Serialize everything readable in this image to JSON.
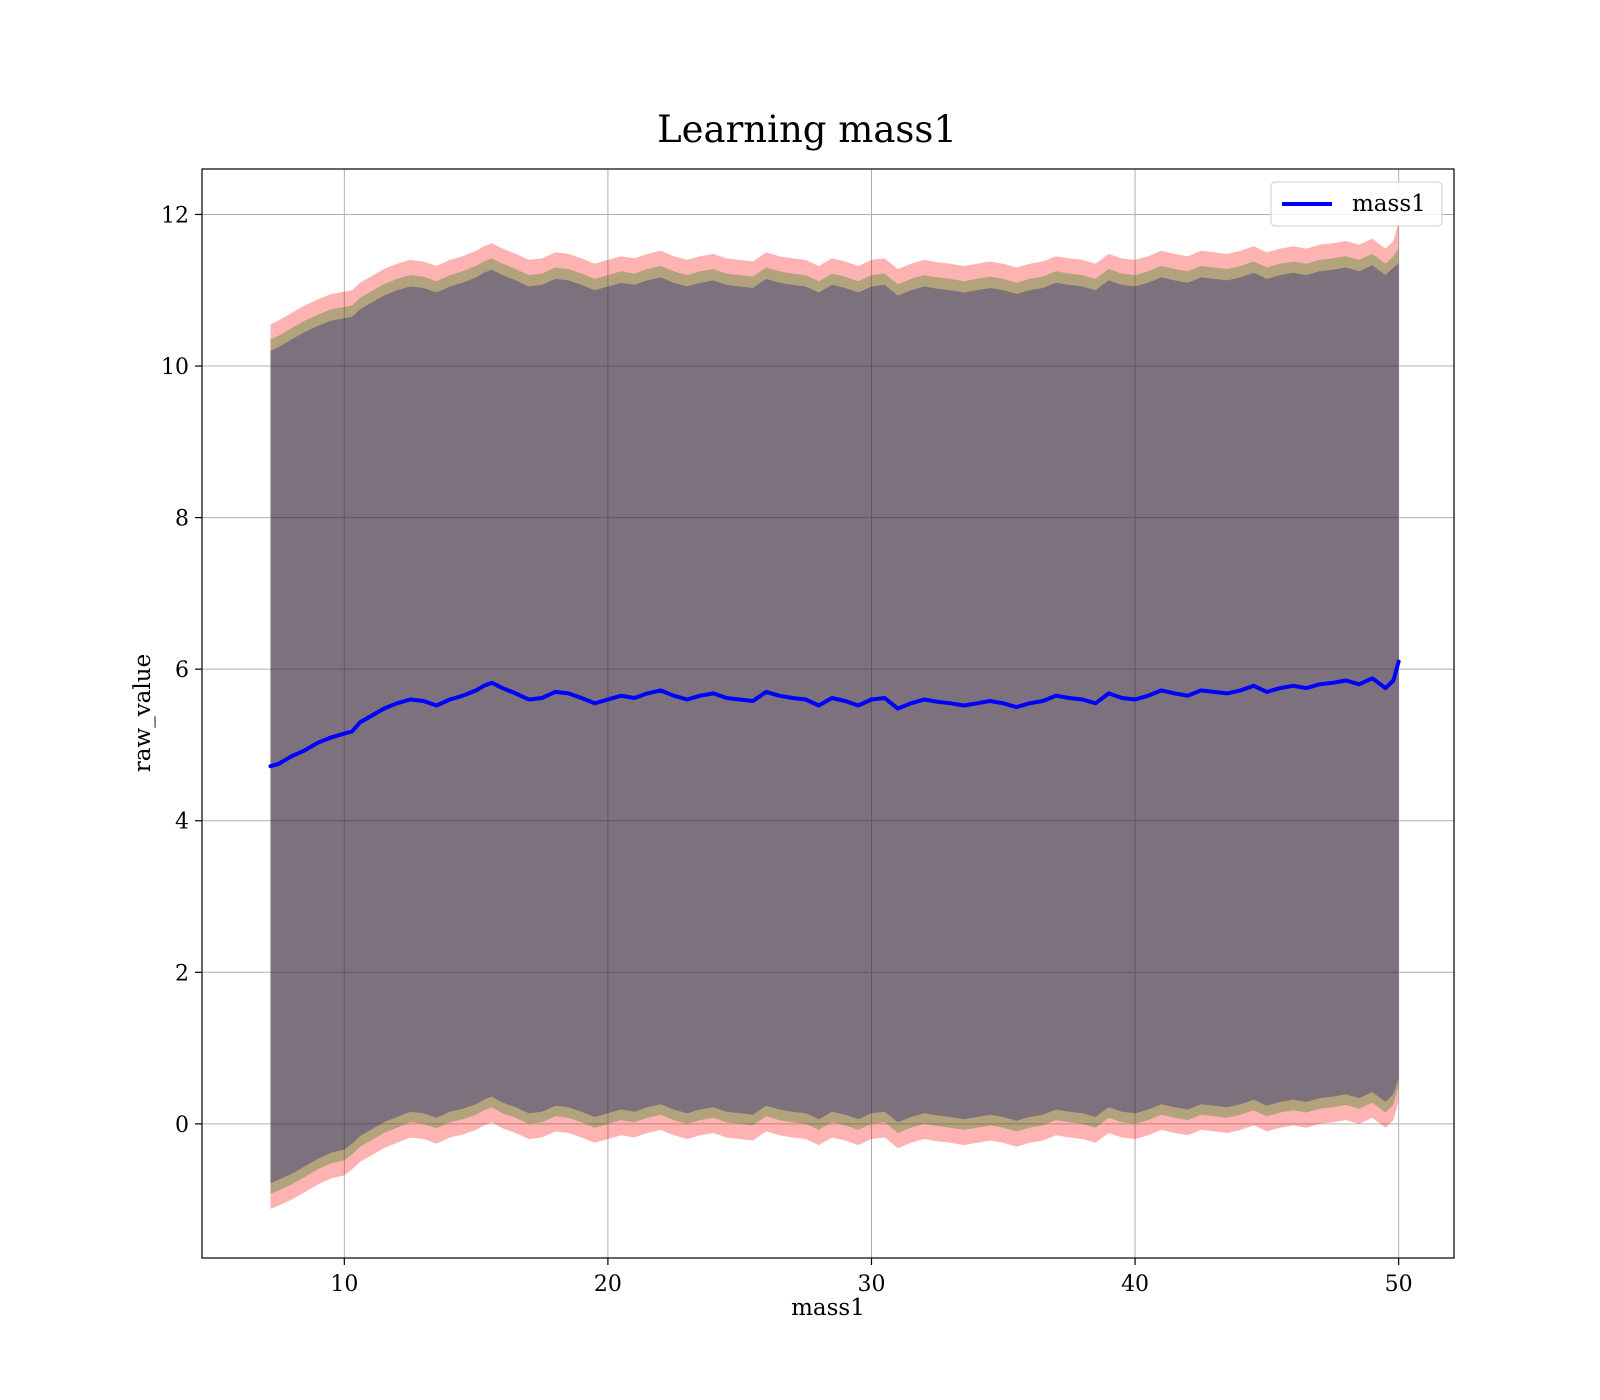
{
  "chart_data": {
    "type": "line",
    "title": "Learning mass1",
    "xlabel": "mass1",
    "ylabel": "raw_value",
    "xlim": [
      4.6,
      52.1
    ],
    "ylim": [
      -1.77,
      12.6
    ],
    "xticks": [
      10,
      20,
      30,
      40,
      50
    ],
    "yticks": [
      0,
      2,
      4,
      6,
      8,
      10,
      12
    ],
    "grid": true,
    "legend": {
      "position": "top-right",
      "entries": [
        "mass1"
      ]
    },
    "series": [
      {
        "name": "mass1",
        "color": "#0000ff",
        "x": [
          7.2,
          7.5,
          8,
          8.5,
          9,
          9.5,
          10,
          10.3,
          10.6,
          11,
          11.5,
          12,
          12.5,
          13,
          13.5,
          14,
          14.5,
          15,
          15.3,
          15.6,
          16,
          16.5,
          17,
          17.5,
          18,
          18.5,
          19,
          19.5,
          20,
          20.5,
          21,
          21.5,
          22,
          22.5,
          23,
          23.5,
          24,
          24.5,
          25,
          25.5,
          26,
          26.5,
          27,
          27.5,
          28,
          28.5,
          29,
          29.5,
          30,
          30.5,
          31,
          31.5,
          32,
          32.5,
          33,
          33.5,
          34,
          34.5,
          35,
          35.5,
          36,
          36.5,
          37,
          37.5,
          38,
          38.5,
          39,
          39.5,
          40,
          40.5,
          41,
          41.5,
          42,
          42.5,
          43,
          43.5,
          44,
          44.5,
          45,
          45.5,
          46,
          46.5,
          47,
          47.5,
          48,
          48.5,
          49,
          49.5,
          49.8,
          50
        ],
        "y": [
          4.72,
          4.75,
          4.85,
          4.93,
          5.03,
          5.1,
          5.15,
          5.18,
          5.3,
          5.38,
          5.48,
          5.55,
          5.6,
          5.58,
          5.52,
          5.6,
          5.65,
          5.72,
          5.78,
          5.82,
          5.75,
          5.68,
          5.6,
          5.62,
          5.7,
          5.68,
          5.62,
          5.55,
          5.6,
          5.65,
          5.62,
          5.68,
          5.72,
          5.65,
          5.6,
          5.65,
          5.68,
          5.62,
          5.6,
          5.58,
          5.7,
          5.65,
          5.62,
          5.6,
          5.52,
          5.62,
          5.58,
          5.52,
          5.6,
          5.62,
          5.48,
          5.55,
          5.6,
          5.57,
          5.55,
          5.52,
          5.55,
          5.58,
          5.55,
          5.5,
          5.55,
          5.58,
          5.65,
          5.62,
          5.6,
          5.55,
          5.68,
          5.62,
          5.6,
          5.65,
          5.72,
          5.68,
          5.65,
          5.72,
          5.7,
          5.68,
          5.72,
          5.78,
          5.7,
          5.75,
          5.78,
          5.75,
          5.8,
          5.82,
          5.85,
          5.8,
          5.88,
          5.75,
          5.85,
          6.1
        ]
      }
    ],
    "bands": [
      {
        "color": "#ff0000",
        "opacity": 0.3,
        "lower": [
          -1.12,
          -1.08,
          -1.0,
          -0.9,
          -0.8,
          -0.72,
          -0.68,
          -0.6,
          -0.5,
          -0.42,
          -0.32,
          -0.25,
          -0.18,
          -0.2,
          -0.26,
          -0.18,
          -0.14,
          -0.08,
          -0.02,
          0.02,
          -0.06,
          -0.12,
          -0.2,
          -0.18,
          -0.1,
          -0.12,
          -0.18,
          -0.25,
          -0.2,
          -0.15,
          -0.18,
          -0.12,
          -0.08,
          -0.15,
          -0.2,
          -0.15,
          -0.12,
          -0.18,
          -0.2,
          -0.22,
          -0.1,
          -0.15,
          -0.18,
          -0.2,
          -0.28,
          -0.18,
          -0.22,
          -0.28,
          -0.2,
          -0.18,
          -0.32,
          -0.25,
          -0.2,
          -0.23,
          -0.25,
          -0.28,
          -0.25,
          -0.22,
          -0.25,
          -0.3,
          -0.25,
          -0.22,
          -0.15,
          -0.18,
          -0.2,
          -0.25,
          -0.12,
          -0.18,
          -0.2,
          -0.15,
          -0.08,
          -0.12,
          -0.15,
          -0.08,
          -0.1,
          -0.12,
          -0.08,
          -0.02,
          -0.1,
          -0.05,
          -0.02,
          -0.05,
          0.0,
          0.02,
          0.05,
          0.0,
          0.08,
          -0.05,
          0.05,
          0.3
        ],
        "upper": [
          10.55,
          10.6,
          10.7,
          10.8,
          10.88,
          10.95,
          10.98,
          11.0,
          11.1,
          11.18,
          11.28,
          11.35,
          11.4,
          11.38,
          11.32,
          11.4,
          11.45,
          11.52,
          11.58,
          11.62,
          11.55,
          11.48,
          11.4,
          11.42,
          11.5,
          11.48,
          11.42,
          11.35,
          11.4,
          11.45,
          11.42,
          11.48,
          11.52,
          11.45,
          11.4,
          11.45,
          11.48,
          11.42,
          11.4,
          11.38,
          11.5,
          11.45,
          11.42,
          11.4,
          11.32,
          11.42,
          11.38,
          11.32,
          11.4,
          11.42,
          11.28,
          11.35,
          11.4,
          11.37,
          11.35,
          11.32,
          11.35,
          11.38,
          11.35,
          11.3,
          11.35,
          11.38,
          11.45,
          11.42,
          11.4,
          11.35,
          11.48,
          11.42,
          11.4,
          11.45,
          11.52,
          11.48,
          11.45,
          11.52,
          11.5,
          11.48,
          11.52,
          11.58,
          11.5,
          11.55,
          11.58,
          11.55,
          11.6,
          11.62,
          11.65,
          11.6,
          11.68,
          11.55,
          11.65,
          11.9
        ]
      },
      {
        "color": "#008000",
        "opacity": 0.3,
        "lower": [
          -0.92,
          -0.88,
          -0.8,
          -0.7,
          -0.6,
          -0.52,
          -0.48,
          -0.4,
          -0.3,
          -0.22,
          -0.12,
          -0.05,
          0.02,
          0.0,
          -0.06,
          0.02,
          0.06,
          0.12,
          0.18,
          0.22,
          0.14,
          0.08,
          0.0,
          0.02,
          0.1,
          0.08,
          0.02,
          -0.05,
          0.0,
          0.05,
          0.02,
          0.08,
          0.12,
          0.05,
          0.0,
          0.05,
          0.08,
          0.02,
          0.0,
          -0.02,
          0.1,
          0.05,
          0.02,
          0.0,
          -0.08,
          0.02,
          -0.02,
          -0.08,
          0.0,
          0.02,
          -0.12,
          -0.05,
          0.0,
          -0.03,
          -0.05,
          -0.08,
          -0.05,
          -0.02,
          -0.05,
          -0.1,
          -0.05,
          -0.02,
          0.05,
          0.02,
          0.0,
          -0.05,
          0.08,
          0.02,
          0.0,
          0.05,
          0.12,
          0.08,
          0.05,
          0.12,
          0.1,
          0.08,
          0.12,
          0.18,
          0.1,
          0.15,
          0.18,
          0.15,
          0.2,
          0.22,
          0.25,
          0.2,
          0.28,
          0.15,
          0.25,
          0.5
        ],
        "upper": [
          10.35,
          10.4,
          10.5,
          10.6,
          10.68,
          10.75,
          10.78,
          10.8,
          10.9,
          10.98,
          11.08,
          11.15,
          11.2,
          11.18,
          11.12,
          11.2,
          11.25,
          11.32,
          11.38,
          11.42,
          11.35,
          11.28,
          11.2,
          11.22,
          11.3,
          11.28,
          11.22,
          11.15,
          11.2,
          11.25,
          11.22,
          11.28,
          11.32,
          11.25,
          11.2,
          11.25,
          11.28,
          11.22,
          11.2,
          11.18,
          11.3,
          11.25,
          11.22,
          11.2,
          11.12,
          11.22,
          11.18,
          11.12,
          11.2,
          11.22,
          11.08,
          11.15,
          11.2,
          11.17,
          11.15,
          11.12,
          11.15,
          11.18,
          11.15,
          11.1,
          11.15,
          11.18,
          11.25,
          11.22,
          11.2,
          11.15,
          11.28,
          11.22,
          11.2,
          11.25,
          11.32,
          11.28,
          11.25,
          11.32,
          11.3,
          11.28,
          11.32,
          11.38,
          11.3,
          11.35,
          11.38,
          11.35,
          11.4,
          11.42,
          11.45,
          11.4,
          11.48,
          11.35,
          11.45,
          11.55
        ]
      },
      {
        "color": "#000080",
        "opacity": 0.3,
        "lower": [
          -0.78,
          -0.74,
          -0.66,
          -0.56,
          -0.46,
          -0.38,
          -0.34,
          -0.26,
          -0.16,
          -0.08,
          0.02,
          0.09,
          0.16,
          0.14,
          0.08,
          0.16,
          0.2,
          0.26,
          0.32,
          0.36,
          0.28,
          0.22,
          0.14,
          0.16,
          0.24,
          0.22,
          0.16,
          0.09,
          0.14,
          0.19,
          0.16,
          0.22,
          0.26,
          0.19,
          0.14,
          0.19,
          0.22,
          0.16,
          0.14,
          0.12,
          0.24,
          0.19,
          0.16,
          0.14,
          0.06,
          0.16,
          0.12,
          0.06,
          0.14,
          0.16,
          0.02,
          0.09,
          0.14,
          0.11,
          0.09,
          0.06,
          0.09,
          0.12,
          0.09,
          0.04,
          0.09,
          0.12,
          0.19,
          0.16,
          0.14,
          0.09,
          0.22,
          0.16,
          0.14,
          0.19,
          0.26,
          0.22,
          0.19,
          0.26,
          0.24,
          0.22,
          0.26,
          0.32,
          0.24,
          0.29,
          0.32,
          0.29,
          0.34,
          0.36,
          0.39,
          0.34,
          0.42,
          0.29,
          0.39,
          0.6
        ],
        "upper": [
          10.2,
          10.25,
          10.35,
          10.45,
          10.53,
          10.6,
          10.63,
          10.65,
          10.75,
          10.83,
          10.93,
          11.0,
          11.05,
          11.03,
          10.97,
          11.05,
          11.1,
          11.17,
          11.23,
          11.27,
          11.2,
          11.13,
          11.05,
          11.07,
          11.15,
          11.13,
          11.07,
          11.0,
          11.05,
          11.1,
          11.07,
          11.13,
          11.17,
          11.1,
          11.05,
          11.1,
          11.13,
          11.07,
          11.05,
          11.03,
          11.15,
          11.1,
          11.07,
          11.05,
          10.97,
          11.07,
          11.03,
          10.97,
          11.05,
          11.07,
          10.93,
          11.0,
          11.05,
          11.02,
          11.0,
          10.97,
          11.0,
          11.03,
          11.0,
          10.95,
          11.0,
          11.03,
          11.1,
          11.07,
          11.05,
          11.0,
          11.13,
          11.07,
          11.05,
          11.1,
          11.17,
          11.13,
          11.1,
          11.17,
          11.15,
          11.13,
          11.17,
          11.23,
          11.15,
          11.2,
          11.23,
          11.2,
          11.25,
          11.27,
          11.3,
          11.25,
          11.33,
          11.2,
          11.3,
          11.35
        ]
      }
    ]
  }
}
